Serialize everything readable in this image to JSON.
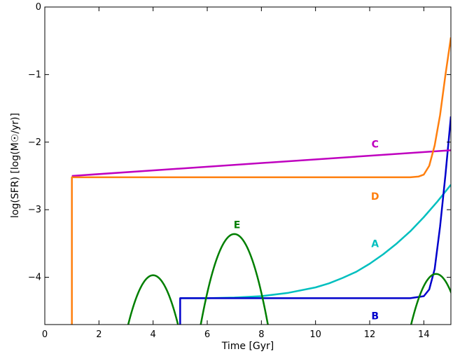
{
  "chart_data": {
    "type": "line",
    "xlabel": "Time [Gyr]",
    "ylabel": "log(SFR) [log(M☉/yr)]",
    "xlim": [
      0,
      15
    ],
    "ylim": [
      -4.7,
      0
    ],
    "xticks": [
      0,
      2,
      4,
      6,
      8,
      10,
      12,
      14
    ],
    "yticks": [
      0,
      -1,
      -2,
      -3,
      -4
    ],
    "xtick_labels": [
      "0",
      "2",
      "4",
      "6",
      "8",
      "10",
      "12",
      "14"
    ],
    "ytick_labels": [
      "0",
      "−1",
      "−2",
      "−3",
      "−4"
    ],
    "grid": false,
    "series": [
      {
        "name": "A",
        "color": "#00bfbf",
        "label_at": [
          12.2,
          -3.5
        ],
        "x": [
          5.0,
          6.0,
          7.0,
          8.0,
          9.0,
          10.0,
          10.5,
          11.0,
          11.5,
          12.0,
          12.5,
          13.0,
          13.5,
          14.0,
          14.5,
          15.0
        ],
        "y": [
          -4.31,
          -4.31,
          -4.3,
          -4.28,
          -4.23,
          -4.15,
          -4.09,
          -4.01,
          -3.92,
          -3.8,
          -3.66,
          -3.5,
          -3.32,
          -3.11,
          -2.88,
          -2.63
        ]
      },
      {
        "name": "B",
        "color": "#0000cc",
        "label_at": [
          12.2,
          -4.57
        ],
        "x": [
          5.0,
          5.0,
          6.0,
          8.0,
          10.0,
          12.0,
          13.5,
          14.0,
          14.2,
          14.4,
          14.6,
          14.8,
          15.0
        ],
        "y": [
          -4.7,
          -4.31,
          -4.31,
          -4.31,
          -4.31,
          -4.31,
          -4.31,
          -4.28,
          -4.18,
          -3.88,
          -3.25,
          -2.48,
          -1.62
        ]
      },
      {
        "name": "C",
        "color": "#bf00bf",
        "label_at": [
          12.2,
          -2.03
        ],
        "x": [
          1.0,
          15.0
        ],
        "y": [
          -2.5,
          -2.12
        ]
      },
      {
        "name": "D",
        "color": "#ff7f0e",
        "label_at": [
          12.2,
          -2.8
        ],
        "x": [
          1.0,
          1.0,
          4.0,
          8.0,
          12.0,
          13.5,
          13.8,
          14.0,
          14.2,
          14.4,
          14.6,
          14.8,
          15.0
        ],
        "y": [
          -4.7,
          -2.52,
          -2.52,
          -2.52,
          -2.52,
          -2.52,
          -2.51,
          -2.48,
          -2.35,
          -2.05,
          -1.6,
          -1.0,
          -0.45
        ]
      },
      {
        "name": "E",
        "color": "#007f00",
        "label_at": [
          7.1,
          -3.22
        ],
        "segments": [
          {
            "center": 4.0,
            "peak": -3.97,
            "halfwidth": 0.92
          },
          {
            "center": 7.0,
            "peak": -3.36,
            "halfwidth": 1.24
          },
          {
            "center": 14.45,
            "peak": -3.95,
            "halfwidth": 0.92
          }
        ]
      }
    ]
  }
}
